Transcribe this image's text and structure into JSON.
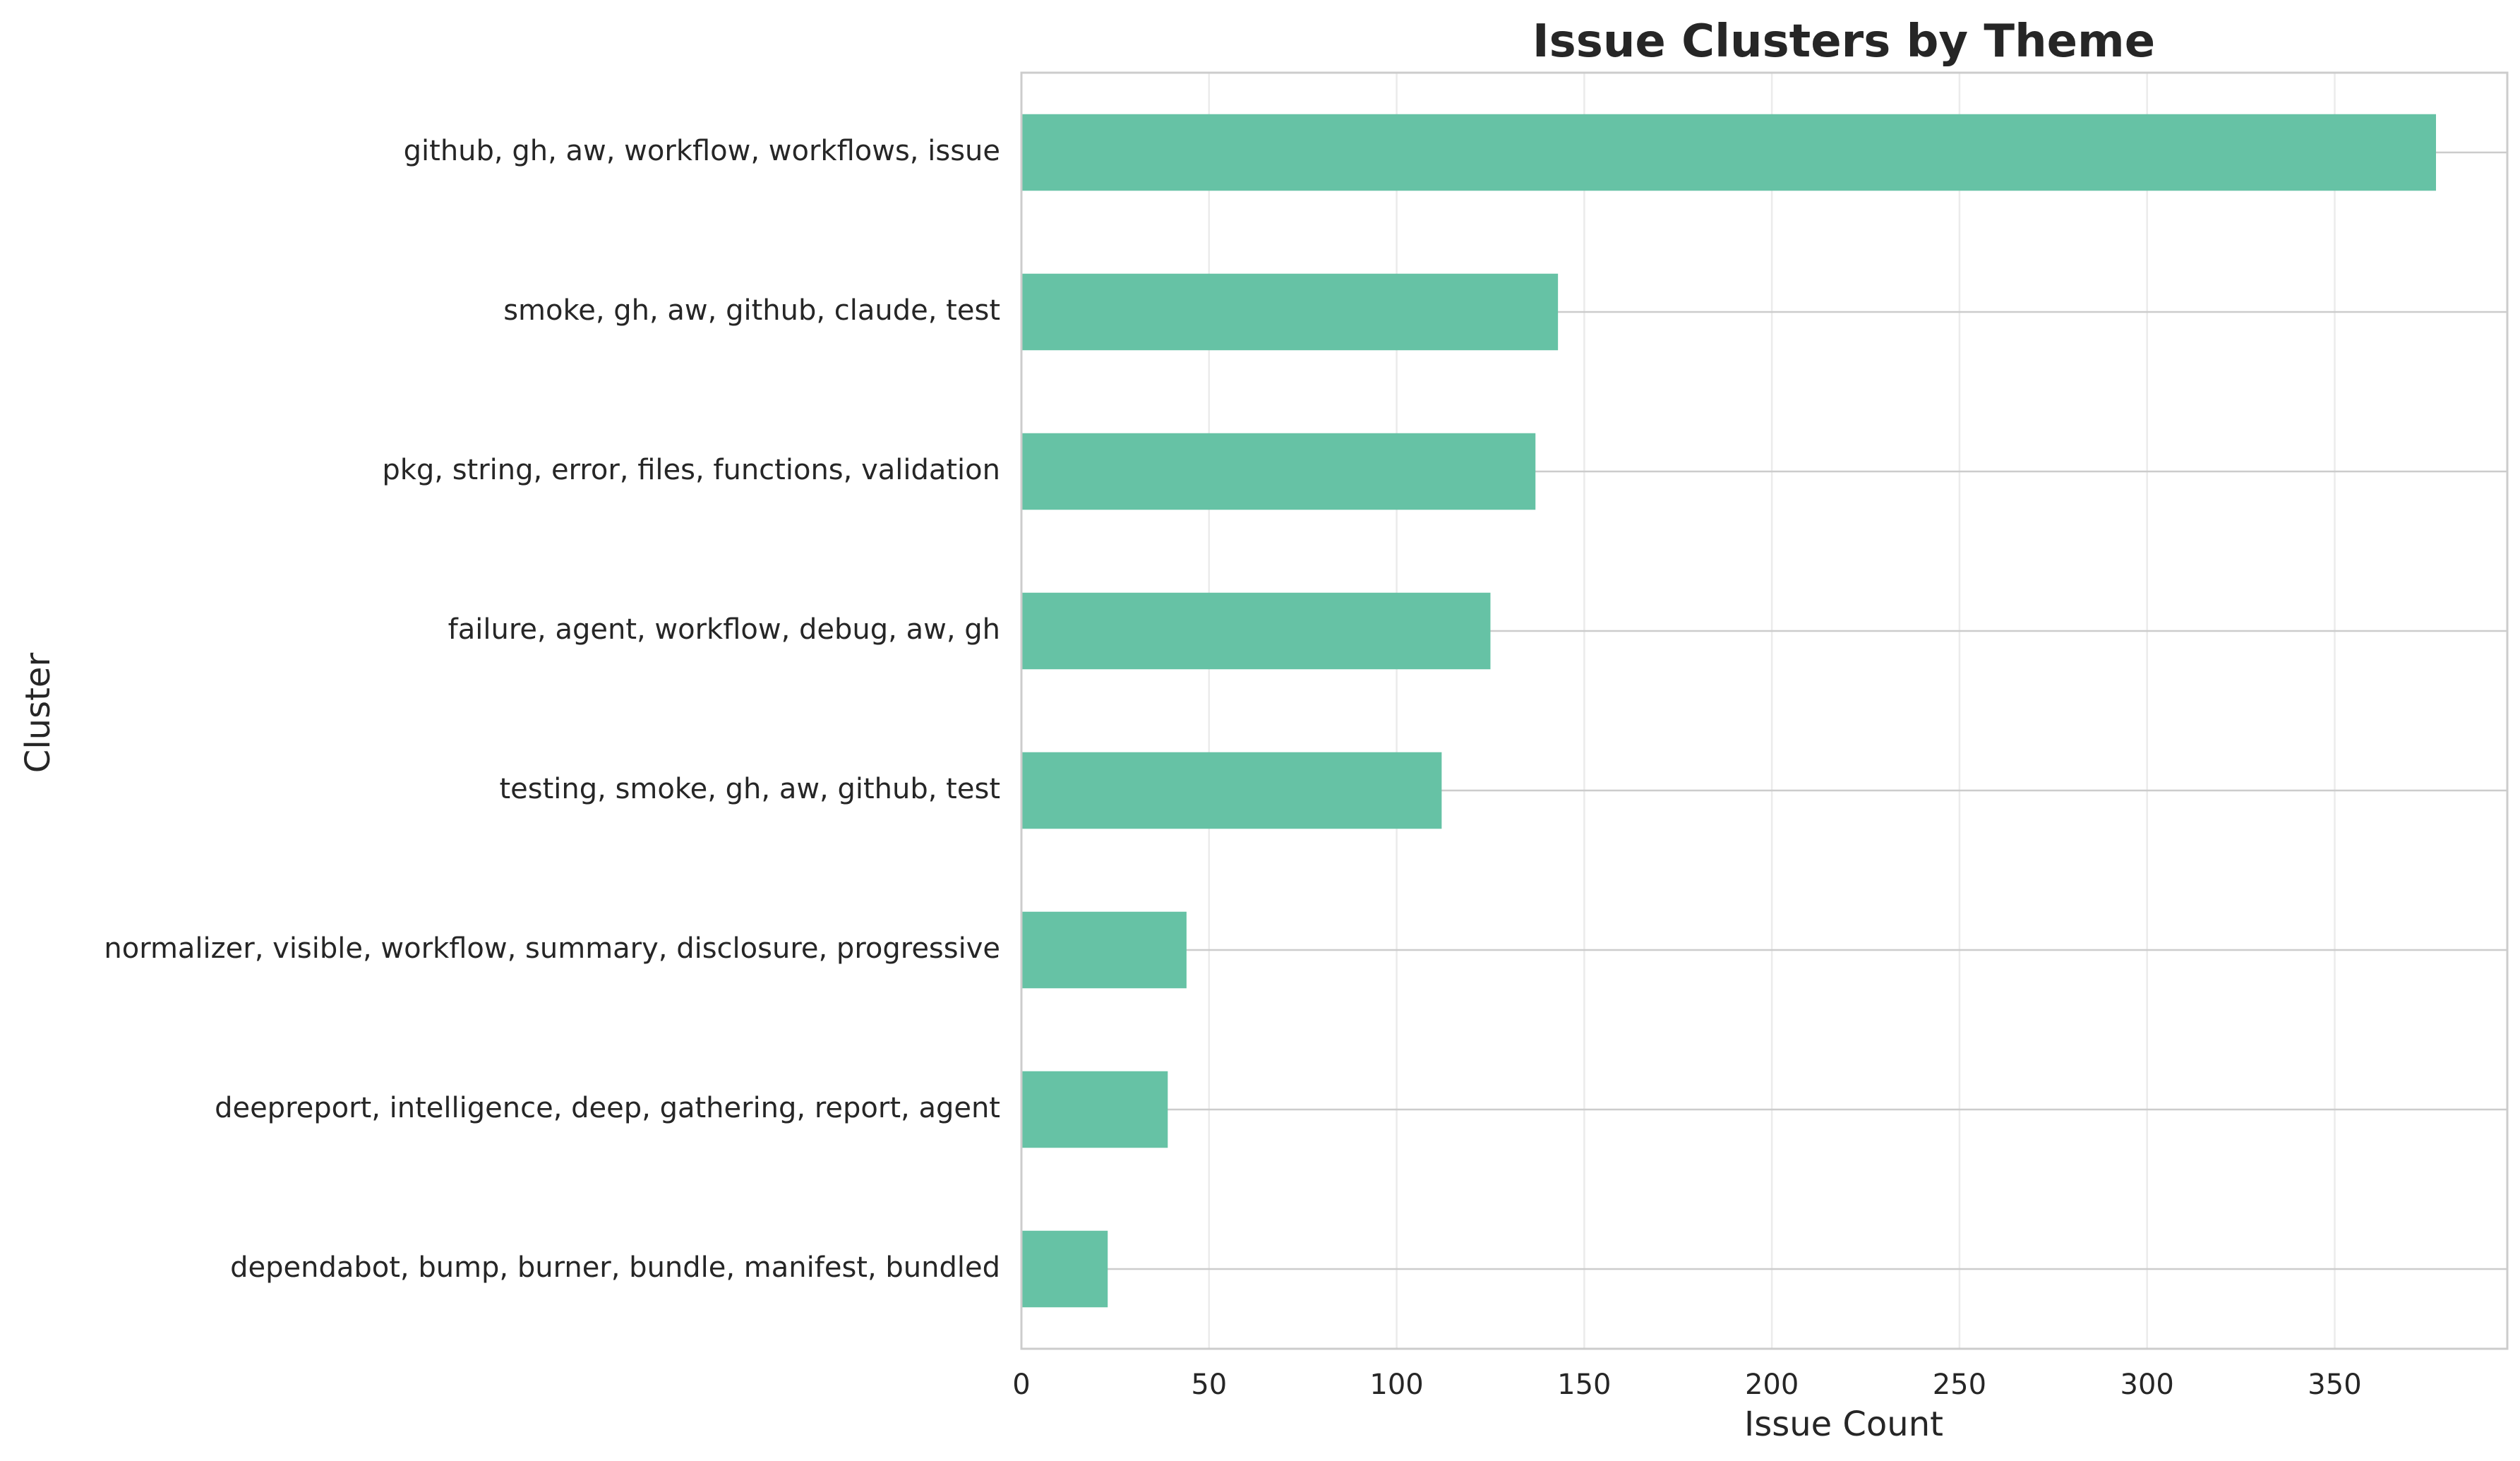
{
  "chart_data": {
    "type": "bar",
    "orientation": "horizontal",
    "title": "Issue Clusters by Theme",
    "xlabel": "Issue Count",
    "ylabel": "Cluster",
    "xlim": [
      0,
      396
    ],
    "xticks": [
      0,
      50,
      100,
      150,
      200,
      250,
      300,
      350
    ],
    "grid": true,
    "bar_color": "#66c2a5",
    "categories": [
      "github, gh, aw, workflow, workflows, issue",
      "smoke, gh, aw, github, claude, test",
      "pkg, string, error, files, functions, validation",
      "failure, agent, workflow, debug, aw, gh",
      "testing, smoke, gh, aw, github, test",
      "normalizer, visible, workflow, summary, disclosure, progressive",
      "deepreport, intelligence, deep, gathering, report, agent",
      "dependabot, bump, burner, bundle, manifest, bundled"
    ],
    "values": [
      377,
      143,
      137,
      125,
      112,
      44,
      39,
      23
    ]
  }
}
